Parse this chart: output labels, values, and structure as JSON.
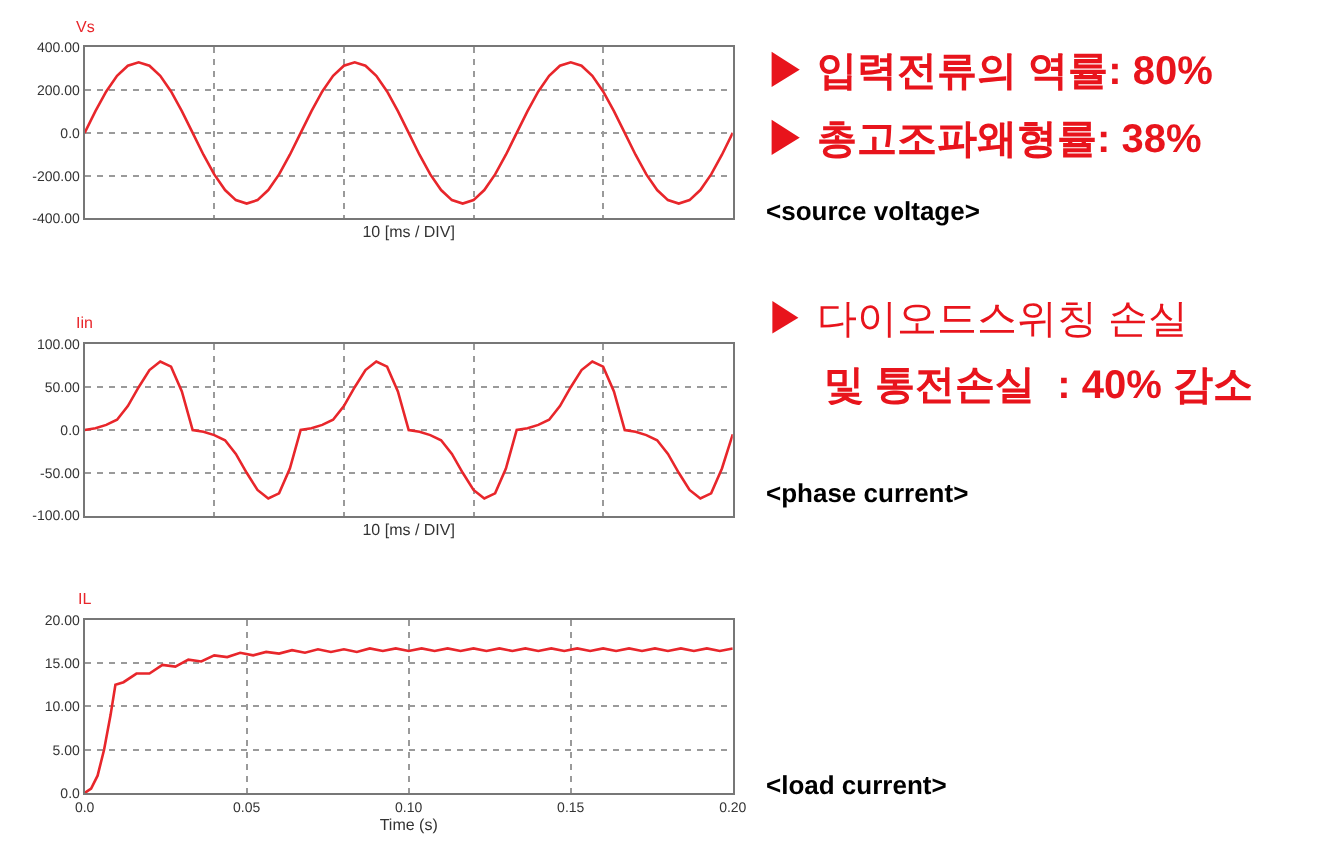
{
  "chart_data": [
    {
      "type": "line",
      "ylabel": "Vs",
      "xlabel": "10 [ms / DIV]",
      "grid": true,
      "marker": "none",
      "line_style": "solid",
      "categories": [
        null,
        null,
        null,
        null,
        null,
        null,
        null,
        null,
        null,
        null,
        null,
        null,
        null,
        null,
        null,
        null,
        null,
        null,
        null,
        null,
        null,
        null,
        null,
        null,
        null,
        null,
        null,
        null,
        null,
        null,
        null,
        null,
        null,
        null,
        null,
        null,
        null,
        null,
        null,
        null,
        null,
        null,
        null,
        null,
        null,
        null,
        null,
        null,
        null,
        null,
        null,
        null,
        null,
        null,
        null,
        null,
        null,
        null,
        null,
        null,
        null
      ],
      "series": [
        {
          "color": "#e8262b",
          "values": [
            0,
            102,
            194,
            267,
            314,
            330,
            314,
            267,
            194,
            102,
            0,
            -102,
            -194,
            -267,
            -314,
            -330,
            -314,
            -267,
            -194,
            -102,
            0,
            102,
            194,
            267,
            314,
            330,
            314,
            267,
            194,
            102,
            0,
            -102,
            -194,
            -267,
            -314,
            -330,
            -314,
            -267,
            -194,
            -102,
            0,
            102,
            194,
            267,
            314,
            330,
            314,
            267,
            194,
            102,
            0,
            -102,
            -194,
            -267,
            -314,
            -330,
            -314,
            -267,
            -194,
            -102,
            0
          ]
        }
      ],
      "ylim": [
        -400,
        400
      ],
      "yticks": [
        {
          "value": 400,
          "label": "400.00"
        },
        {
          "value": 200,
          "label": "200.00"
        },
        {
          "value": 0,
          "label": "0.0"
        },
        {
          "value": -200,
          "label": "-200.00"
        },
        {
          "value": -400,
          "label": "-400.00"
        }
      ],
      "annotations": [
        "▶ 입력전류의 역률: 80%",
        "▶ 총고조파왜형률: 38%",
        "<source voltage>"
      ]
    },
    {
      "type": "line",
      "ylabel": "Iin",
      "xlabel": "10 [ms / DIV]",
      "grid": true,
      "marker": "none",
      "line_style": "solid",
      "categories": [
        null,
        null,
        null,
        null,
        null,
        null,
        null,
        null,
        null,
        null,
        null,
        null,
        null,
        null,
        null,
        null,
        null,
        null,
        null,
        null,
        null,
        null,
        null,
        null,
        null,
        null,
        null,
        null,
        null,
        null,
        null,
        null,
        null,
        null,
        null,
        null,
        null,
        null,
        null,
        null,
        null,
        null,
        null,
        null,
        null,
        null,
        null,
        null,
        null,
        null,
        null,
        null,
        null,
        null,
        null,
        null,
        null,
        null,
        null,
        null,
        null
      ],
      "series": [
        {
          "color": "#e8262b",
          "values": [
            0,
            2,
            6,
            12,
            28,
            50,
            70,
            80,
            74,
            45,
            0,
            -2,
            -6,
            -12,
            -28,
            -50,
            -70,
            -80,
            -74,
            -45,
            0,
            2,
            6,
            12,
            28,
            50,
            70,
            80,
            74,
            45,
            0,
            -2,
            -6,
            -12,
            -28,
            -50,
            -70,
            -80,
            -74,
            -45,
            0,
            2,
            6,
            12,
            28,
            50,
            70,
            80,
            74,
            45,
            0,
            -2,
            -6,
            -12,
            -28,
            -50,
            -70,
            -80,
            -74,
            -45,
            -5
          ]
        }
      ],
      "ylim": [
        -100,
        100
      ],
      "yticks": [
        {
          "value": 100,
          "label": "100.00"
        },
        {
          "value": 50,
          "label": "50.00"
        },
        {
          "value": 0,
          "label": "0.0"
        },
        {
          "value": -50,
          "label": "-50.00"
        },
        {
          "value": -100,
          "label": "-100.00"
        }
      ],
      "annotations": [
        "▶ 다이오드스위칭 손실",
        "및 통전손실  : 40% 감소",
        "<phase current>"
      ]
    },
    {
      "type": "line",
      "ylabel": "IL",
      "xlabel": "Time (s)",
      "grid": true,
      "marker": "none",
      "line_style": "solid",
      "series": [
        {
          "color": "#e8262b",
          "x": [
            0,
            0.002,
            0.004,
            0.006,
            0.008,
            0.0095,
            0.012,
            0.016,
            0.02,
            0.024,
            0.028,
            0.032,
            0.036,
            0.04,
            0.044,
            0.048,
            0.052,
            0.056,
            0.06,
            0.064,
            0.068,
            0.072,
            0.076,
            0.08,
            0.084,
            0.088,
            0.092,
            0.096,
            0.1,
            0.104,
            0.108,
            0.112,
            0.116,
            0.12,
            0.124,
            0.128,
            0.132,
            0.136,
            0.14,
            0.144,
            0.148,
            0.152,
            0.156,
            0.16,
            0.164,
            0.168,
            0.172,
            0.176,
            0.18,
            0.184,
            0.188,
            0.192,
            0.196,
            0.2
          ],
          "values": [
            0,
            0.5,
            2,
            5,
            9,
            12.5,
            12.8,
            13.8,
            13.8,
            14.8,
            14.6,
            15.4,
            15.2,
            15.9,
            15.7,
            16.2,
            15.9,
            16.3,
            16.1,
            16.5,
            16.2,
            16.6,
            16.3,
            16.6,
            16.3,
            16.7,
            16.4,
            16.7,
            16.4,
            16.7,
            16.4,
            16.7,
            16.4,
            16.7,
            16.4,
            16.7,
            16.4,
            16.7,
            16.4,
            16.7,
            16.4,
            16.7,
            16.4,
            16.7,
            16.4,
            16.7,
            16.4,
            16.7,
            16.4,
            16.7,
            16.4,
            16.7,
            16.4,
            16.7
          ]
        }
      ],
      "xlim": [
        0,
        0.2
      ],
      "xticks": [
        {
          "value": 0,
          "label": "0.0"
        },
        0.05,
        {
          "value": 0.1,
          "label": "0.10"
        },
        0.15,
        {
          "value": 0.2,
          "label": "0.20"
        }
      ],
      "ylim": [
        0,
        20
      ],
      "yticks": [
        {
          "value": 0,
          "label": "0.0"
        },
        {
          "value": 5,
          "label": "5.00"
        },
        {
          "value": 10,
          "label": "10.00"
        },
        {
          "value": 15,
          "label": "15.00"
        },
        {
          "value": 20,
          "label": "20.00"
        }
      ],
      "annotations": [
        "<load current>"
      ]
    }
  ]
}
